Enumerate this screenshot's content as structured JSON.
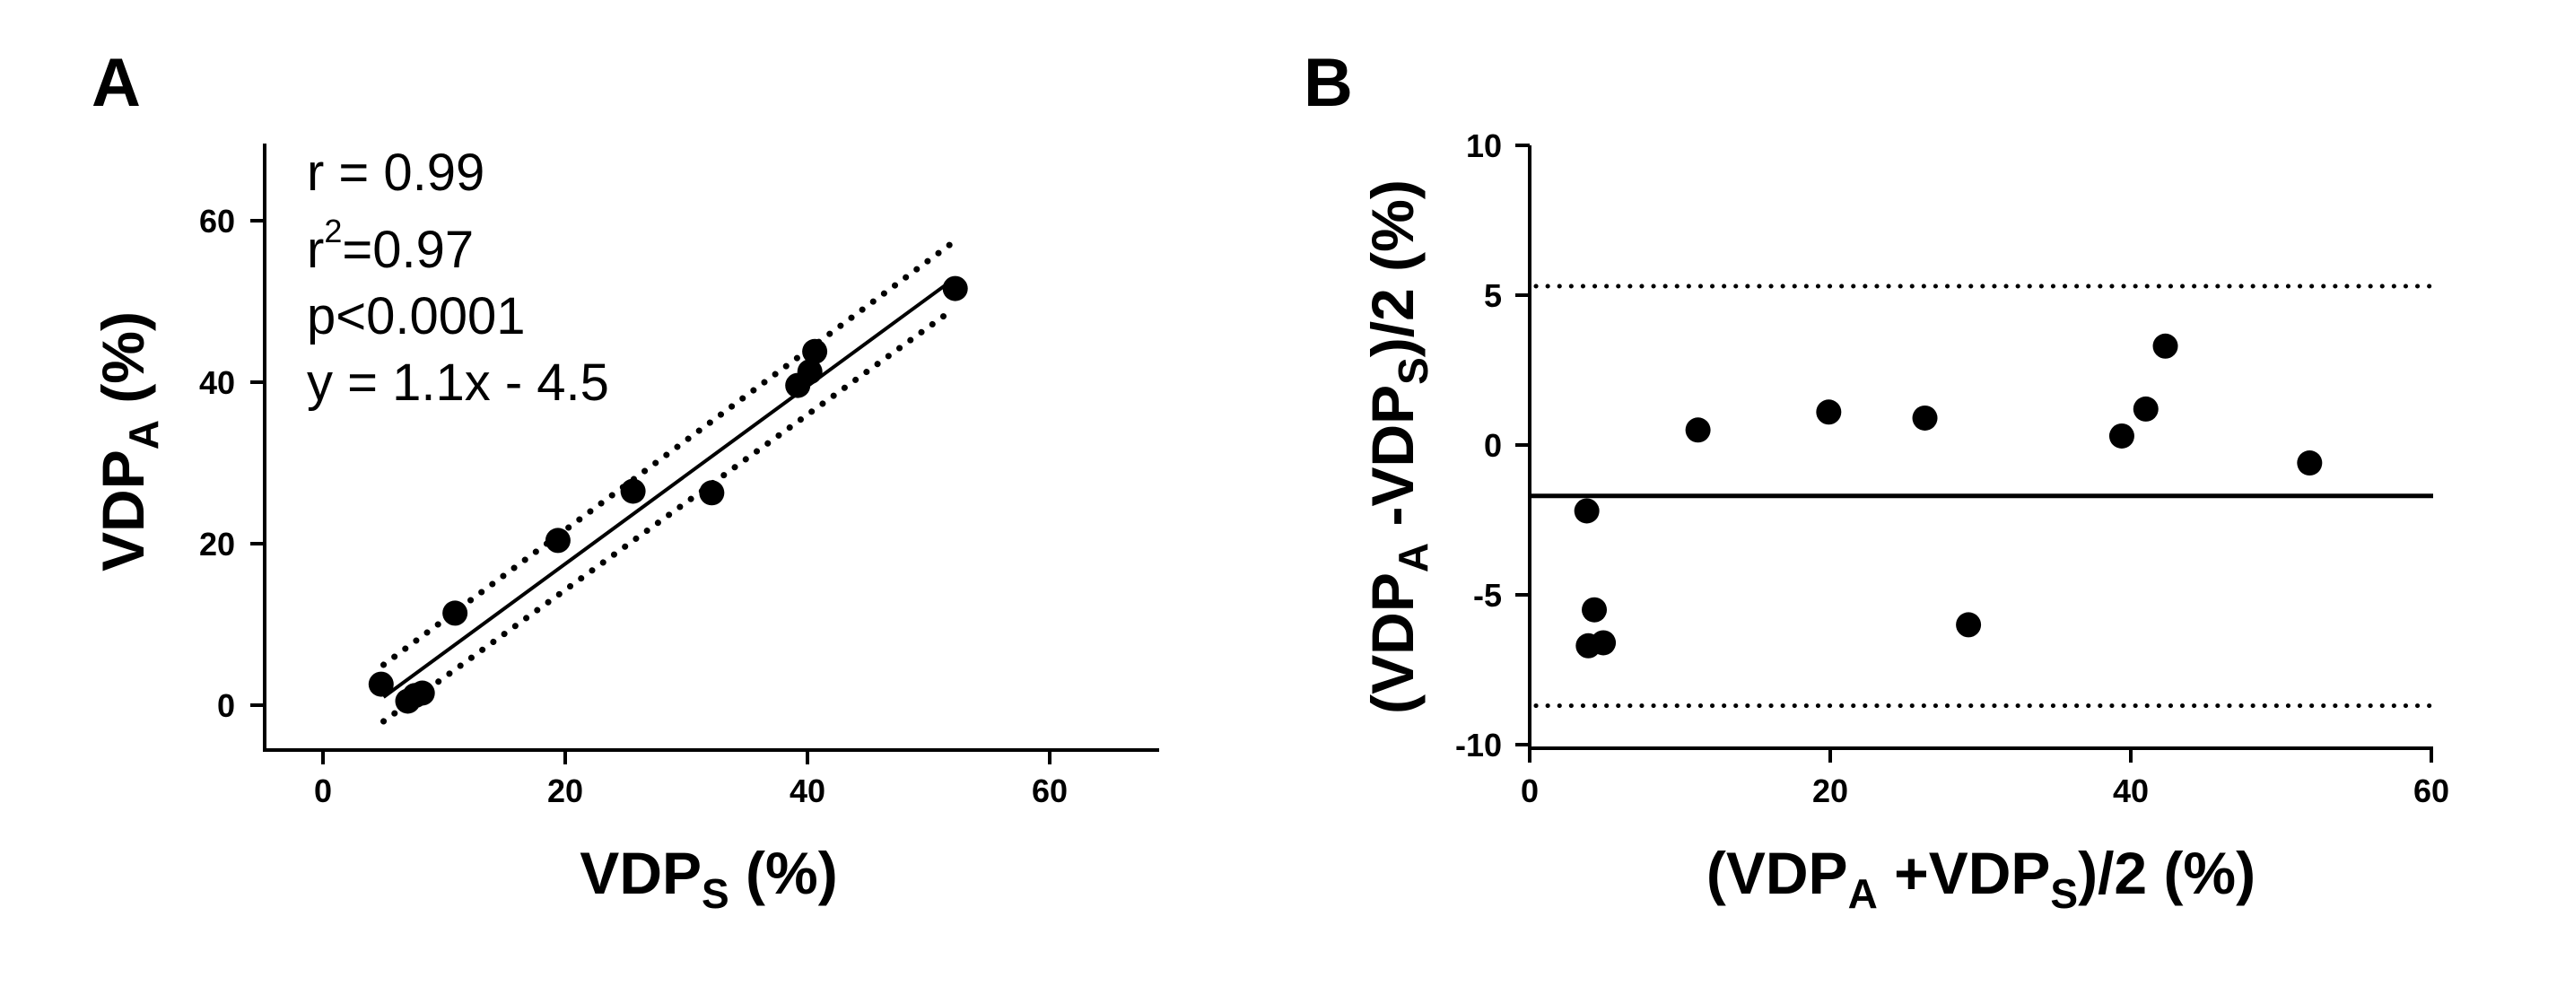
{
  "chart_data": [
    {
      "type": "scatter",
      "panel_label": "A",
      "xlim": [
        -5,
        70
      ],
      "ylim": [
        -5,
        70
      ],
      "x_ticks": [
        0,
        20,
        40,
        60
      ],
      "y_ticks": [
        0,
        20,
        40,
        60
      ],
      "x_tick_labels": [
        "0",
        "20",
        "40",
        "60"
      ],
      "y_tick_labels": [
        "0",
        "20",
        "40",
        "60"
      ],
      "xlabel": {
        "main": "VDP",
        "sub": "S",
        "tail": " (%)"
      },
      "ylabel": {
        "main": "VDP",
        "sub": "A",
        "tail": " (%)"
      },
      "annotations": {
        "r": "r = 0.99",
        "r2_prefix": "r",
        "r2_sup": "2",
        "r2_suffix": "=0.97",
        "p": "p<0.0001",
        "equation": "y = 1.1x - 4.5"
      },
      "points": [
        {
          "x": 4.8,
          "y": 2.6
        },
        {
          "x": 7.0,
          "y": 0.5
        },
        {
          "x": 7.6,
          "y": 1.2
        },
        {
          "x": 8.2,
          "y": 1.5
        },
        {
          "x": 10.9,
          "y": 11.4
        },
        {
          "x": 19.4,
          "y": 20.4
        },
        {
          "x": 25.6,
          "y": 26.5
        },
        {
          "x": 32.1,
          "y": 26.3
        },
        {
          "x": 39.2,
          "y": 39.6
        },
        {
          "x": 40.2,
          "y": 41.3
        },
        {
          "x": 40.6,
          "y": 43.8
        },
        {
          "x": 52.2,
          "y": 51.6
        }
      ],
      "fit_line": {
        "slope": 1.1,
        "intercept": -4.5,
        "x_range": [
          5,
          52
        ]
      },
      "confidence_band": {
        "upper": [
          [
            5,
            5.0
          ],
          [
            52,
            57.3
          ]
        ],
        "lower": [
          [
            5,
            -2.0
          ],
          [
            52,
            49.0
          ]
        ]
      }
    },
    {
      "type": "scatter",
      "panel_label": "B",
      "xlim": [
        0,
        60
      ],
      "ylim": [
        -10,
        10
      ],
      "x_ticks": [
        0,
        20,
        40,
        60
      ],
      "y_ticks": [
        -10,
        -5,
        0,
        5,
        10
      ],
      "x_tick_labels": [
        "0",
        "20",
        "40",
        "60"
      ],
      "y_tick_labels": [
        "-10",
        "-5",
        "0",
        "5",
        "10"
      ],
      "xlabel": {
        "p1": "(VDP",
        "s1": "A",
        "p2": " +VDP",
        "s2": "S",
        "p3": ")/2 (%)"
      },
      "ylabel": {
        "p1": "(VDP",
        "s1": "A",
        "p2": " -VDP",
        "s2": "S",
        "p3": ")/2 (%)"
      },
      "points": [
        {
          "x": 3.8,
          "y": -2.2
        },
        {
          "x": 3.9,
          "y": -6.7
        },
        {
          "x": 4.3,
          "y": -5.5
        },
        {
          "x": 4.9,
          "y": -6.6
        },
        {
          "x": 11.2,
          "y": 0.5
        },
        {
          "x": 19.9,
          "y": 1.1
        },
        {
          "x": 26.3,
          "y": 0.9
        },
        {
          "x": 29.2,
          "y": -6.0
        },
        {
          "x": 39.4,
          "y": 0.3
        },
        {
          "x": 41.0,
          "y": 1.2
        },
        {
          "x": 42.3,
          "y": 3.3
        },
        {
          "x": 51.9,
          "y": -0.6
        }
      ],
      "mean_bias": -1.7,
      "upper_loa": 5.3,
      "lower_loa": -8.7
    }
  ]
}
